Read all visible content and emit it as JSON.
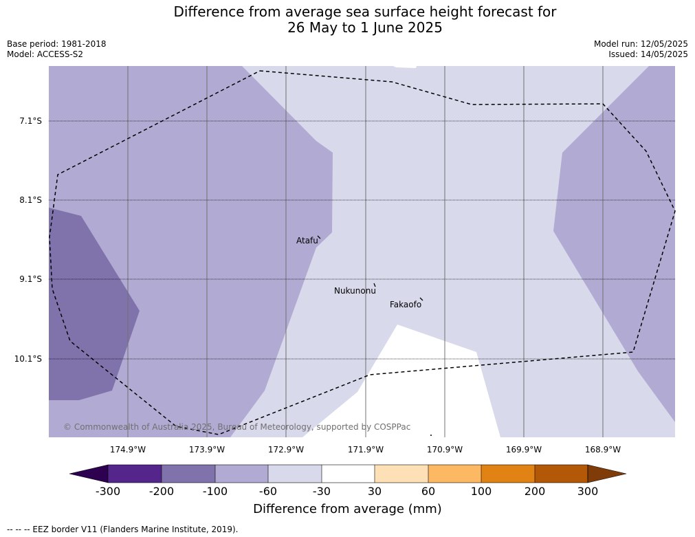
{
  "title_line1": "Difference from average sea surface height forecast for",
  "title_line2": "26 May to 1 June 2025",
  "base_period": "Base period: 1981-2018",
  "model": "Model: ACCESS-S2",
  "model_run": "Model run: 12/05/2025",
  "issued": "Issued: 14/05/2025",
  "latitudes": [
    "7.1°S",
    "8.1°S",
    "9.1°S",
    "10.1°S"
  ],
  "longitudes": [
    "174.9°W",
    "173.9°W",
    "172.9°W",
    "171.9°W",
    "170.9°W",
    "169.9°W",
    "168.9°W"
  ],
  "places": {
    "atafu": "Atafu",
    "nukunonu": "Nukunonu",
    "fakaofo": "Fakaofo"
  },
  "copyright": "© Commonwealth of Australia 2025, Bureau of Meteorology, supported by COSPPac",
  "colorbar": {
    "ticks": [
      "-300",
      "-200",
      "-100",
      "-60",
      "-30",
      "30",
      "60",
      "100",
      "200",
      "300"
    ],
    "colors": [
      "#2d0050",
      "#54268c",
      "#8073ac",
      "#b1aad2",
      "#d8d9ea",
      "#ffffff",
      "#fee0b6",
      "#fdb863",
      "#e08214",
      "#b35806",
      "#7f3b08"
    ],
    "label": "Difference from average (mm)"
  },
  "footnote": "--  --  -- EEZ border V11 (Flanders Marine Institute, 2019)."
}
